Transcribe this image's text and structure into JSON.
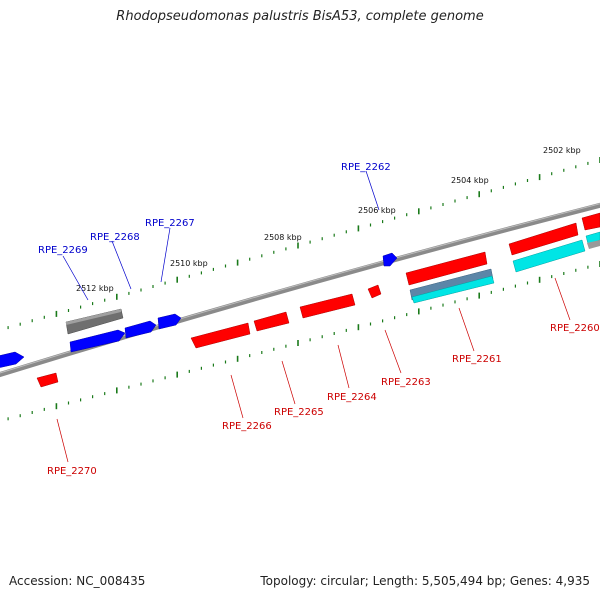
{
  "title": "Rhodopseudomonas palustris BisA53, complete genome",
  "accession_text": "Accession: NC_008435",
  "genome_info_text": "Topology: circular; Length: 5,505,494 bp; Genes: 4,935",
  "colors": {
    "backbone": "#7f7f7f",
    "tick": "#1a7a1a",
    "forward_gene": "#0000ff",
    "reverse_gene": "#ff0000",
    "rna_gene": "#00e5e5",
    "pseudo_gene": "#6f6f6f",
    "forward_label": "#0000cc",
    "reverse_label": "#cc0000"
  },
  "kbp_labels": [
    "2502 kbp",
    "2504 kbp",
    "2506 kbp",
    "2508 kbp",
    "2510 kbp",
    "2512 kbp"
  ],
  "forward_labels": [
    "RPE_2262",
    "RPE_2267",
    "RPE_2268",
    "RPE_2269"
  ],
  "reverse_labels": [
    "RPE_2260",
    "RPE_2261",
    "RPE_2263",
    "RPE_2264",
    "RPE_2265",
    "RPE_2266",
    "RPE_2270"
  ]
}
